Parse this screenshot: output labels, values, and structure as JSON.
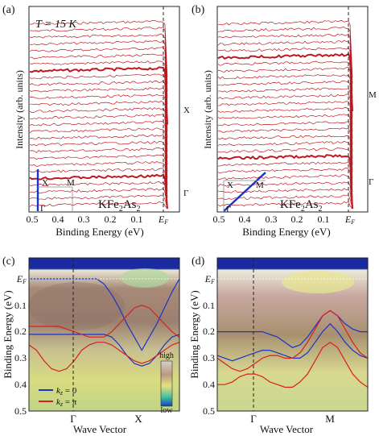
{
  "colors": {
    "edc": "#c0181e",
    "band_red": "#d82020",
    "band_blue": "#1a33cc",
    "cb_high": "#c8c0b0",
    "cb_low": "#1040c0"
  },
  "chart_data": [
    {
      "type": "line",
      "panel": "(a)",
      "annotation": "T = 15 K",
      "compound": "KFe2As2",
      "xlabel": "Binding Energy (eV)",
      "ylabel": "Intensity (arb. units)",
      "xlim": [
        0.5,
        -0.02
      ],
      "xticks": [
        "0.5",
        "0.4",
        "0.3",
        "0.2",
        "0.1",
        "E_F"
      ],
      "right_labels": [
        "X",
        "Γ"
      ],
      "inset_labels": [
        "X",
        "M",
        "Γ"
      ],
      "edc_count": 28,
      "highlighted_edcs": [
        7,
        23
      ]
    },
    {
      "type": "line",
      "panel": "(b)",
      "compound": "KFe2As2",
      "xlabel": "Binding Energy (eV)",
      "ylabel": "Intensity (arb. units)",
      "xlim": [
        0.5,
        -0.02
      ],
      "xticks": [
        "0.5",
        "0.4",
        "0.3",
        "0.2",
        "0.1",
        "E_F"
      ],
      "right_labels": [
        "M",
        "Γ"
      ],
      "inset_labels": [
        "X",
        "M",
        "Γ"
      ],
      "edc_count": 28,
      "highlighted_edcs": [
        5,
        20
      ]
    },
    {
      "type": "heatmap",
      "panel": "(c)",
      "xlabel": "Wave Vector",
      "ylabel": "Binding Energy (eV)",
      "ylim": [
        0.5,
        0
      ],
      "yticks": [
        "E_F",
        "0.1",
        "0.2",
        "0.3",
        "0.4",
        "0.5"
      ],
      "xticks": [
        "Γ",
        "X"
      ],
      "colorbar": [
        "high",
        "low"
      ],
      "legend": [
        "k_z = 0",
        "k_z = π"
      ],
      "bands": {
        "kz0": [
          {
            "x": [
              0,
              0.05,
              0.1,
              0.15,
              0.2,
              0.25,
              0.3,
              0.35,
              0.4,
              0.45,
              0.5,
              0.55,
              0.6,
              0.65,
              0.7,
              0.75,
              0.8,
              0.85,
              0.9,
              0.95,
              1
            ],
            "y": [
              0.0,
              0.0,
              0.0,
              0.0,
              0.0,
              0.0,
              0.0,
              0.0,
              0.0,
              0.0,
              0.02,
              0.06,
              0.11,
              0.17,
              0.22,
              0.27,
              0.22,
              0.17,
              0.11,
              0.05,
              0.0
            ]
          },
          {
            "x": [
              0,
              0.05,
              0.1,
              0.15,
              0.2,
              0.25,
              0.3,
              0.35,
              0.4,
              0.45,
              0.5,
              0.55,
              0.6,
              0.65,
              0.7,
              0.75,
              0.8,
              0.85,
              0.9,
              0.95,
              1
            ],
            "y": [
              0.21,
              0.21,
              0.21,
              0.21,
              0.21,
              0.21,
              0.21,
              0.21,
              0.21,
              0.21,
              0.21,
              0.22,
              0.25,
              0.29,
              0.32,
              0.33,
              0.32,
              0.29,
              0.25,
              0.22,
              0.21
            ]
          }
        ],
        "kzpi": [
          {
            "x": [
              0,
              0.05,
              0.1,
              0.15,
              0.2,
              0.25,
              0.3,
              0.35,
              0.4,
              0.45,
              0.5,
              0.55,
              0.6,
              0.65,
              0.7,
              0.75,
              0.8,
              0.85,
              0.9,
              0.95,
              1
            ],
            "y": [
              0.25,
              0.27,
              0.31,
              0.34,
              0.35,
              0.34,
              0.31,
              0.27,
              0.25,
              0.24,
              0.24,
              0.25,
              0.27,
              0.29,
              0.31,
              0.32,
              0.31,
              0.29,
              0.27,
              0.25,
              0.24
            ]
          },
          {
            "x": [
              0,
              0.05,
              0.1,
              0.15,
              0.2,
              0.25,
              0.3,
              0.35,
              0.4,
              0.45,
              0.5,
              0.55,
              0.6,
              0.65,
              0.7,
              0.75,
              0.8,
              0.85,
              0.9,
              0.95,
              1
            ],
            "y": [
              0.18,
              0.18,
              0.18,
              0.18,
              0.18,
              0.19,
              0.2,
              0.21,
              0.22,
              0.22,
              0.22,
              0.2,
              0.17,
              0.14,
              0.11,
              0.1,
              0.11,
              0.14,
              0.17,
              0.2,
              0.22
            ]
          }
        ]
      }
    },
    {
      "type": "heatmap",
      "panel": "(d)",
      "xlabel": "Wave Vector",
      "ylabel": "Binding Energy (eV)",
      "ylim": [
        0.5,
        0
      ],
      "yticks": [
        "E_F",
        "0.1",
        "0.2",
        "0.3",
        "0.4",
        "0.5"
      ],
      "xticks": [
        "Γ",
        "M"
      ],
      "bands": {
        "kz0": [
          {
            "x": [
              0,
              0.05,
              0.1,
              0.15,
              0.2,
              0.25,
              0.3,
              0.35,
              0.4,
              0.45,
              0.5,
              0.55,
              0.6,
              0.65,
              0.7,
              0.75,
              0.8,
              0.85,
              0.9,
              0.95,
              1
            ],
            "y": [
              0.2,
              0.2,
              0.2,
              0.2,
              0.2,
              0.2,
              0.2,
              0.21,
              0.22,
              0.24,
              0.26,
              0.25,
              0.22,
              0.18,
              0.14,
              0.12,
              0.14,
              0.17,
              0.19,
              0.2,
              0.2
            ]
          },
          {
            "x": [
              0,
              0.05,
              0.1,
              0.15,
              0.2,
              0.25,
              0.3,
              0.35,
              0.4,
              0.45,
              0.5,
              0.55,
              0.6,
              0.65,
              0.7,
              0.75,
              0.8,
              0.85,
              0.9,
              0.95,
              1
            ],
            "y": [
              0.29,
              0.3,
              0.31,
              0.3,
              0.29,
              0.28,
              0.27,
              0.27,
              0.28,
              0.29,
              0.3,
              0.3,
              0.28,
              0.24,
              0.2,
              0.17,
              0.2,
              0.24,
              0.27,
              0.29,
              0.3
            ]
          }
        ],
        "kzpi": [
          {
            "x": [
              0,
              0.05,
              0.1,
              0.15,
              0.2,
              0.25,
              0.3,
              0.35,
              0.4,
              0.45,
              0.5,
              0.55,
              0.6,
              0.65,
              0.7,
              0.75,
              0.8,
              0.85,
              0.9,
              0.95,
              1
            ],
            "y": [
              0.3,
              0.32,
              0.34,
              0.35,
              0.34,
              0.32,
              0.3,
              0.29,
              0.29,
              0.3,
              0.3,
              0.28,
              0.24,
              0.19,
              0.14,
              0.12,
              0.14,
              0.19,
              0.24,
              0.28,
              0.3
            ]
          },
          {
            "x": [
              0,
              0.05,
              0.1,
              0.15,
              0.2,
              0.25,
              0.3,
              0.35,
              0.4,
              0.45,
              0.5,
              0.55,
              0.6,
              0.65,
              0.7,
              0.75,
              0.8,
              0.85,
              0.9,
              0.95,
              1
            ],
            "y": [
              0.4,
              0.4,
              0.39,
              0.37,
              0.36,
              0.36,
              0.37,
              0.39,
              0.4,
              0.41,
              0.41,
              0.39,
              0.36,
              0.31,
              0.26,
              0.24,
              0.26,
              0.31,
              0.36,
              0.39,
              0.41
            ]
          }
        ]
      }
    }
  ]
}
